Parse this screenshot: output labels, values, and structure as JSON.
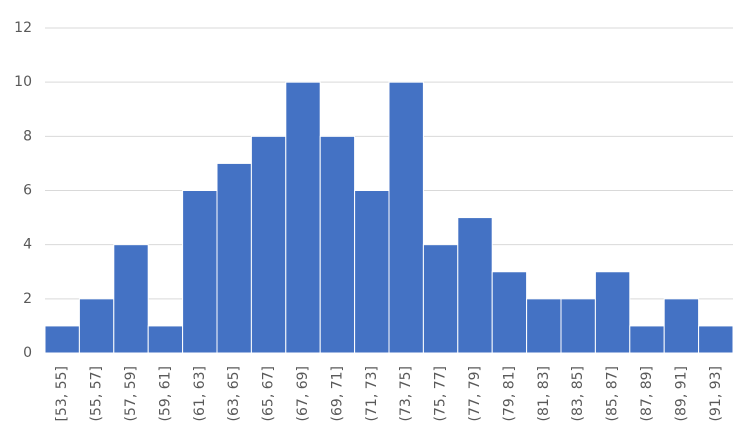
{
  "chart_data": {
    "type": "bar",
    "categories": [
      "[53, 55]",
      "(55, 57]",
      "(57, 59]",
      "(59, 61]",
      "(61, 63]",
      "(63, 65]",
      "(65, 67]",
      "(67, 69]",
      "(69, 71]",
      "(71, 73]",
      "(73, 75]",
      "(75, 77]",
      "(77, 79]",
      "(79, 81]",
      "(81, 83]",
      "(83, 85]",
      "(85, 87]",
      "(87, 89]",
      "(89, 91]",
      "(91, 93]"
    ],
    "values": [
      1,
      2,
      4,
      1,
      6,
      7,
      8,
      10,
      8,
      6,
      10,
      4,
      5,
      3,
      2,
      2,
      3,
      1,
      2,
      1
    ],
    "color": "#4472c4",
    "ylim": [
      0,
      12
    ],
    "yticks": [
      0,
      2,
      4,
      6,
      8,
      10,
      12
    ],
    "grid": true
  }
}
